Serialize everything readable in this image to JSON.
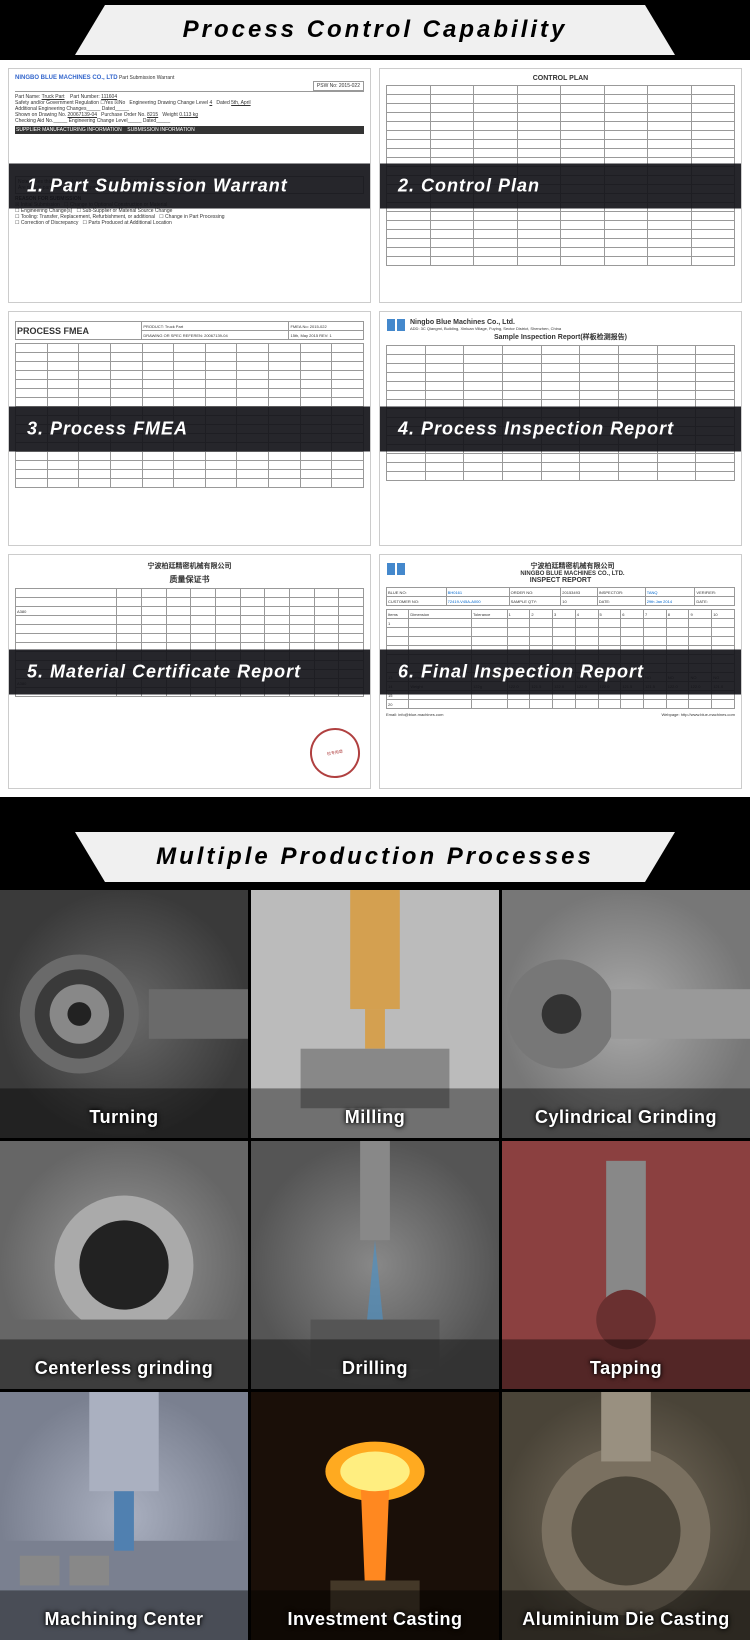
{
  "section1": {
    "title": "Process Control Capability"
  },
  "docs": [
    {
      "overlay": "1. Part Submission Warrant",
      "company": "NINGBO BLUE MACHINES CO., LTD",
      "doc_title": "Part Submission Warrant",
      "psw_no": "PSW No: 2015-022",
      "fields": {
        "part_name": "Truck Part",
        "part_number": "111604",
        "drawing_no": "20067139-04",
        "purchase_order": "8215",
        "weight": "0.113 kg",
        "date": "5th, April",
        "level": "4"
      }
    },
    {
      "overlay": "2. Control Plan",
      "doc_title": "CONTROL PLAN"
    },
    {
      "overlay": "3. Process FMEA",
      "doc_title": "PROCESS FMEA",
      "fields": {
        "product": "Truck Part",
        "fmea_no": "FMEA No: 2015-022",
        "drawing": "DRAWING OR SPEC REFEREN: 20067139-04",
        "date": "15th, May 2015",
        "rev": "REV: 1"
      }
    },
    {
      "overlay": "4. Process Inspection Report",
      "company": "Ningbo Blue Machines Co., Ltd.",
      "doc_title": "Sample Inspection Report(样板检测报告)"
    },
    {
      "overlay": "5. Material Certificate Report",
      "company_cn": "宁波柏廷精密机械有限公司",
      "doc_title": "质量保证书"
    },
    {
      "overlay": "6. Final Inspection Report",
      "company_cn": "宁波柏廷精密机械有限公司",
      "company": "NINGBO BLUE MACHINES CO., LTD.",
      "doc_title": "INSPECT REPORT",
      "fields": {
        "blue_no": "BH0161",
        "order_no": "20153493",
        "inspector": "TANQ",
        "customer_no": "72419-V45A-A000",
        "sample_qty": "10",
        "date": "29th Jan 2014",
        "email": "Email: info@blue-machines.com",
        "webpage": "Webpage: http://www.blue-machines.com"
      }
    }
  ],
  "section2": {
    "title": "Multiple Production Processes"
  },
  "processes": [
    {
      "label": "Turning",
      "bg1": "#3a3a3a",
      "bg2": "#6a6a6a",
      "accent": "#888"
    },
    {
      "label": "Milling",
      "bg1": "#888",
      "bg2": "#bbb",
      "accent": "#d4a050"
    },
    {
      "label": "Cylindrical Grinding",
      "bg1": "#777",
      "bg2": "#aaa",
      "accent": "#999"
    },
    {
      "label": "Centerless grinding",
      "bg1": "#666",
      "bg2": "#999",
      "accent": "#aaa"
    },
    {
      "label": "Drilling",
      "bg1": "#555",
      "bg2": "#888",
      "accent": "#5090c0"
    },
    {
      "label": "Tapping",
      "bg1": "#6a3030",
      "bg2": "#aa6060",
      "accent": "#888"
    },
    {
      "label": "Machining Center",
      "bg1": "#7a8090",
      "bg2": "#aab0c0",
      "accent": "#5080b0"
    },
    {
      "label": "Investment Casting",
      "bg1": "#2a1a10",
      "bg2": "#ff8820",
      "accent": "#ffcc40"
    },
    {
      "label": "Aluminium Die Casting",
      "bg1": "#4a4438",
      "bg2": "#7a7060",
      "accent": "#999080"
    }
  ],
  "colors": {
    "overlay_bg": "rgba(20,20,25,0.92)",
    "header_bg": "#f0f0f0",
    "black": "#000000",
    "white": "#ffffff",
    "blue_company": "#3366cc"
  }
}
